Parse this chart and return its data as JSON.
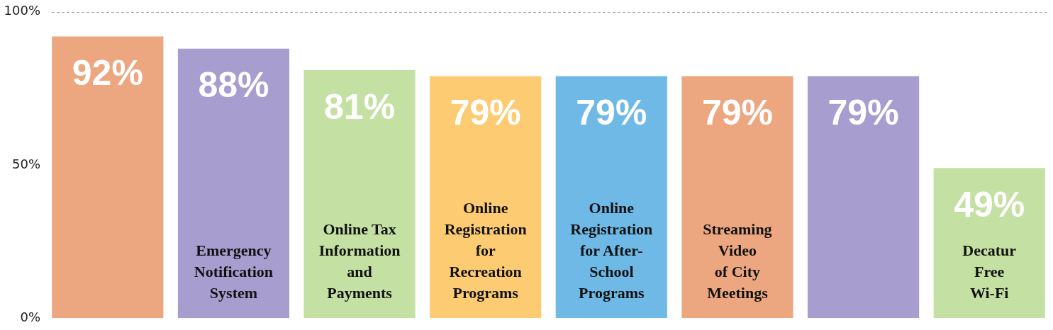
{
  "chart_data": {
    "type": "bar",
    "categories": [
      null,
      "Emergency\nNotification\nSystem",
      "Online Tax\nInformation\nand\nPayments",
      "Online\nRegistration\nfor\nRecreation\nPrograms",
      "Online\nRegistration\nfor After-\nSchool\nPrograms",
      "Streaming\nVideo\nof City\nMeetings",
      null,
      "Decatur\nFree\nWi-Fi"
    ],
    "values": [
      92,
      88,
      81,
      79,
      79,
      79,
      79,
      49
    ],
    "value_labels": [
      "92%",
      "88%",
      "81%",
      "79%",
      "79%",
      "79%",
      "79%",
      "49%"
    ],
    "colors": [
      "#eca780",
      "#a89dcf",
      "#c4e0a2",
      "#fdcb72",
      "#6eb9e6",
      "#eca780",
      "#a89dcf",
      "#c4e0a2"
    ],
    "ylim": [
      0,
      100
    ],
    "yticks": [
      {
        "value": 0,
        "label": "0%"
      },
      {
        "value": 50,
        "label": "50%"
      },
      {
        "value": 100,
        "label": "100%"
      }
    ],
    "ref_lines": [
      {
        "axis": "y",
        "value": 100,
        "color": "#a6a6a6",
        "line_style": "dashed"
      }
    ]
  }
}
